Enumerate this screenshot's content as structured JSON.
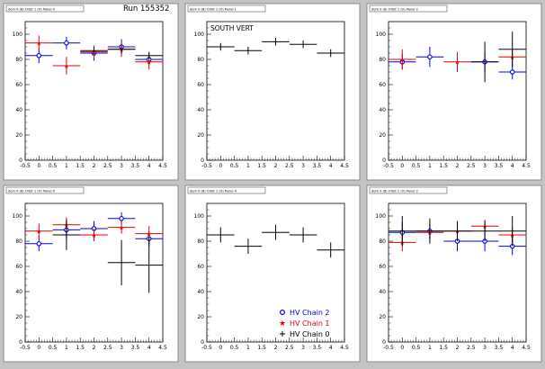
{
  "run_label": "Run 155352",
  "colors": {
    "chain2": "#0000e6",
    "chain1": "#e60000",
    "chain0": "#000000",
    "canvas_bg": "#c4c4c4",
    "pad_bg": "#ffffff"
  },
  "legend": [
    {
      "label": "HV Chain 2",
      "marker": "circle",
      "color": "#0000e6"
    },
    {
      "label": "HV Chain 1",
      "marker": "star",
      "color": "#e60000"
    },
    {
      "label": "HV Chain 0",
      "marker": "cross",
      "color": "#000000"
    }
  ],
  "chart_data": [
    {
      "type": "scatter",
      "title": "",
      "pad_label": "dom 0 (8) Orbit 1 (V) Panel 0",
      "x_ticks": [
        "-0.5",
        "0",
        "0.5",
        "1",
        "1.5",
        "2",
        "2.5",
        "3",
        "3.5",
        "4",
        "4.5"
      ],
      "y_ticks": [
        "0",
        "20",
        "40",
        "60",
        "80",
        "100"
      ],
      "xlim": [
        -0.5,
        4.5
      ],
      "ylim": [
        0,
        110
      ],
      "x_error": 0.5,
      "series": [
        {
          "name": "HV Chain 2",
          "color": "#0000e6",
          "marker": "circle",
          "x": [
            0,
            1,
            2,
            3,
            4
          ],
          "y": [
            83,
            93,
            85,
            90,
            80
          ],
          "yerr": [
            6,
            5,
            6,
            6,
            5
          ]
        },
        {
          "name": "HV Chain 1",
          "color": "#e60000",
          "marker": "star",
          "x": [
            0,
            1,
            2,
            3,
            4
          ],
          "y": [
            93,
            75,
            86,
            88,
            78
          ],
          "yerr": [
            6,
            7,
            5,
            6,
            6
          ]
        },
        {
          "name": "HV Chain 0",
          "color": "#000000",
          "marker": "cross",
          "x": [
            2,
            3,
            4
          ],
          "y": [
            87,
            88,
            83
          ],
          "yerr": [
            3,
            3,
            3
          ]
        }
      ]
    },
    {
      "type": "scatter",
      "title": "SOUTH VERT",
      "pad_label": "dom 0 (8) Orbit 1 (V) Panel 1",
      "x_ticks": [
        "-0.5",
        "0",
        "0.5",
        "1",
        "1.5",
        "2",
        "2.5",
        "3",
        "3.5",
        "4",
        "4.5"
      ],
      "y_ticks": [
        "0",
        "20",
        "40",
        "60",
        "80",
        "100"
      ],
      "xlim": [
        -0.5,
        4.5
      ],
      "ylim": [
        0,
        110
      ],
      "x_error": 0.5,
      "series": [
        {
          "name": "HV Chain 0",
          "color": "#000000",
          "marker": "cross",
          "x": [
            0,
            1,
            2,
            3,
            4
          ],
          "y": [
            90,
            87,
            94,
            92,
            85
          ],
          "yerr": [
            3,
            3,
            3,
            3,
            3
          ]
        }
      ]
    },
    {
      "type": "scatter",
      "title": "",
      "pad_label": "dom 0 (8) Orbit 1 (V) Panel 2",
      "x_ticks": [
        "-0.5",
        "0",
        "0.5",
        "1",
        "1.5",
        "2",
        "2.5",
        "3",
        "3.5",
        "4",
        "4.5"
      ],
      "y_ticks": [
        "0",
        "20",
        "40",
        "60",
        "80",
        "100"
      ],
      "xlim": [
        -0.5,
        4.5
      ],
      "ylim": [
        0,
        110
      ],
      "x_error": 0.5,
      "series": [
        {
          "name": "HV Chain 2",
          "color": "#0000e6",
          "marker": "circle",
          "x": [
            0,
            1,
            3,
            4
          ],
          "y": [
            78,
            82,
            78,
            70
          ],
          "yerr": [
            6,
            8,
            8,
            6
          ]
        },
        {
          "name": "HV Chain 1",
          "color": "#e60000",
          "marker": "star",
          "x": [
            0,
            2,
            4
          ],
          "y": [
            80,
            78,
            82
          ],
          "yerr": [
            8,
            8,
            7
          ]
        },
        {
          "name": "HV Chain 0",
          "color": "#000000",
          "marker": "cross",
          "x": [
            3,
            4
          ],
          "y": [
            78,
            88
          ],
          "yerr": [
            16,
            14
          ]
        }
      ]
    },
    {
      "type": "scatter",
      "title": "",
      "pad_label": "dom 0 (8) Orbit 1 (V) Panel 0",
      "x_ticks": [
        "-0.5",
        "0",
        "0.5",
        "1",
        "1.5",
        "2",
        "2.5",
        "3",
        "3.5",
        "4",
        "4.5"
      ],
      "y_ticks": [
        "0",
        "20",
        "40",
        "60",
        "80",
        "100"
      ],
      "xlim": [
        -0.5,
        4.5
      ],
      "ylim": [
        0,
        110
      ],
      "x_error": 0.5,
      "series": [
        {
          "name": "HV Chain 2",
          "color": "#0000e6",
          "marker": "circle",
          "x": [
            0,
            1,
            2,
            3,
            4
          ],
          "y": [
            78,
            89,
            90,
            98,
            82
          ],
          "yerr": [
            6,
            7,
            6,
            5,
            6
          ]
        },
        {
          "name": "HV Chain 1",
          "color": "#e60000",
          "marker": "star",
          "x": [
            0,
            1,
            2,
            3,
            4
          ],
          "y": [
            88,
            93,
            85,
            91,
            86
          ],
          "yerr": [
            6,
            6,
            5,
            5,
            6
          ]
        },
        {
          "name": "HV Chain 0",
          "color": "#000000",
          "marker": "cross",
          "x": [
            1,
            3,
            4
          ],
          "y": [
            85,
            63,
            61
          ],
          "yerr": [
            12,
            18,
            22
          ]
        }
      ]
    },
    {
      "type": "scatter",
      "title": "",
      "pad_label": "dom 0 (8) Orbit 1 (V) Panel 4",
      "x_ticks": [
        "-0.5",
        "0",
        "0.5",
        "1",
        "1.5",
        "2",
        "2.5",
        "3",
        "3.5",
        "4",
        "4.5"
      ],
      "y_ticks": [
        "0",
        "20",
        "40",
        "60",
        "80",
        "100"
      ],
      "xlim": [
        -0.5,
        4.5
      ],
      "ylim": [
        0,
        110
      ],
      "x_error": 0.5,
      "series": [
        {
          "name": "HV Chain 0",
          "color": "#000000",
          "marker": "cross",
          "x": [
            0,
            1,
            2,
            3,
            4
          ],
          "y": [
            85,
            76,
            87,
            85,
            73
          ],
          "yerr": [
            6,
            6,
            6,
            6,
            6
          ]
        }
      ]
    },
    {
      "type": "scatter",
      "title": "",
      "pad_label": "dom 0 (8) Orbit 1 (V) Panel 2",
      "x_ticks": [
        "-0.5",
        "0",
        "0.5",
        "1",
        "1.5",
        "2",
        "2.5",
        "3",
        "3.5",
        "4",
        "4.5"
      ],
      "y_ticks": [
        "0",
        "20",
        "40",
        "60",
        "80",
        "100"
      ],
      "xlim": [
        -0.5,
        4.5
      ],
      "ylim": [
        0,
        110
      ],
      "x_error": 0.5,
      "series": [
        {
          "name": "HV Chain 2",
          "color": "#0000e6",
          "marker": "circle",
          "x": [
            0,
            1,
            2,
            3,
            4
          ],
          "y": [
            87,
            88,
            80,
            80,
            76
          ],
          "yerr": [
            8,
            6,
            8,
            8,
            7
          ]
        },
        {
          "name": "HV Chain 1",
          "color": "#e60000",
          "marker": "star",
          "x": [
            0,
            1,
            2,
            3,
            4
          ],
          "y": [
            79,
            87,
            88,
            92,
            85
          ],
          "yerr": [
            7,
            6,
            5,
            5,
            6
          ]
        },
        {
          "name": "HV Chain 0",
          "color": "#000000",
          "marker": "cross",
          "x": [
            0,
            1,
            2,
            3,
            4
          ],
          "y": [
            88,
            88,
            88,
            88,
            88
          ],
          "yerr": [
            12,
            10,
            8,
            8,
            12
          ]
        }
      ]
    }
  ]
}
